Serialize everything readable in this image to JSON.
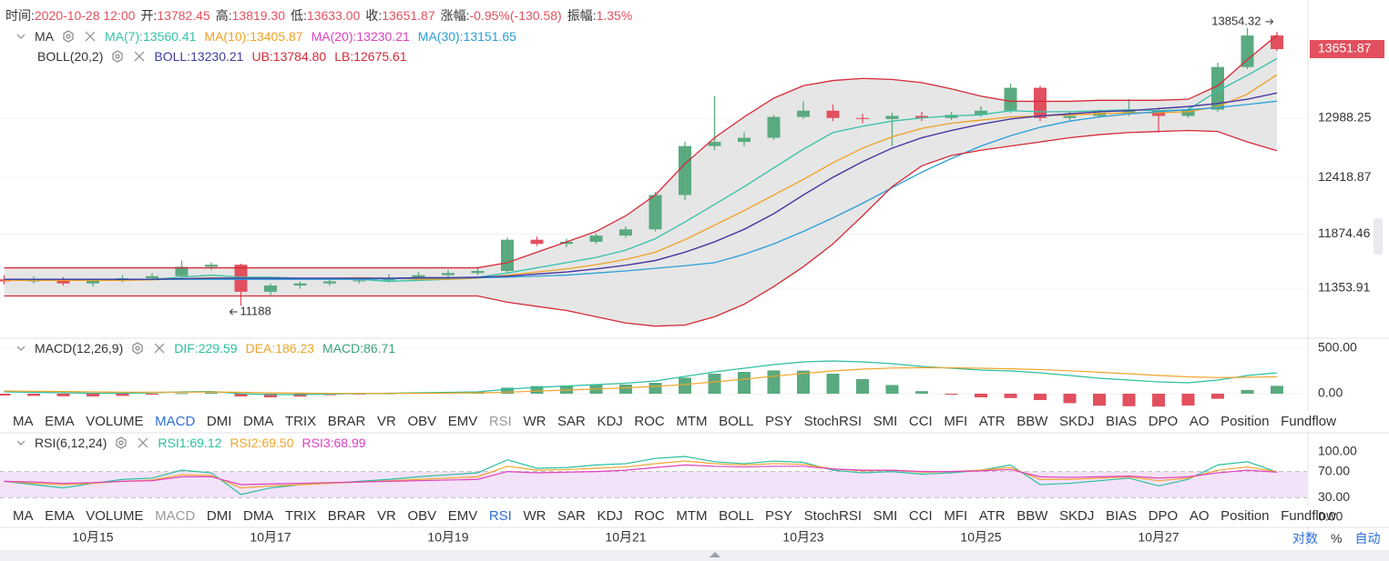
{
  "header": [
    {
      "label": "时间:",
      "value": "2020-10-28 12:00"
    },
    {
      "label": "开:",
      "value": "13782.45"
    },
    {
      "label": "高:",
      "value": "13819.30"
    },
    {
      "label": "低:",
      "value": "13633.00"
    },
    {
      "label": "收:",
      "value": "13651.87"
    },
    {
      "label": "涨幅:",
      "value": "-0.95%(-130.58)"
    },
    {
      "label": "振幅:",
      "value": "1.35%"
    }
  ],
  "chart_data": [
    {
      "type": "candlestick",
      "categories": [
        null,
        null,
        null,
        "10月15",
        null,
        null,
        null,
        null,
        null,
        "10月17",
        null,
        null,
        null,
        null,
        null,
        "10月19",
        null,
        null,
        null,
        null,
        null,
        "10月21",
        null,
        null,
        null,
        null,
        null,
        "10月23",
        null,
        null,
        null,
        null,
        null,
        "10月25",
        null,
        null,
        null,
        null,
        null,
        "10月27",
        null,
        null,
        null,
        null
      ],
      "candles": [
        [
          11440,
          11480,
          11390,
          11420
        ],
        [
          11420,
          11470,
          11400,
          11440
        ],
        [
          11440,
          11460,
          11380,
          11400
        ],
        [
          11400,
          11450,
          11370,
          11430
        ],
        [
          11430,
          11480,
          11410,
          11450
        ],
        [
          11450,
          11500,
          11430,
          11470
        ],
        [
          11470,
          11620,
          11450,
          11560
        ],
        [
          11560,
          11600,
          11530,
          11580
        ],
        [
          11580,
          11590,
          11188,
          11320
        ],
        [
          11320,
          11400,
          11290,
          11380
        ],
        [
          11380,
          11420,
          11350,
          11400
        ],
        [
          11400,
          11440,
          11380,
          11420
        ],
        [
          11420,
          11460,
          11400,
          11430
        ],
        [
          11430,
          11490,
          11410,
          11450
        ],
        [
          11450,
          11510,
          11430,
          11480
        ],
        [
          11480,
          11530,
          11460,
          11500
        ],
        [
          11500,
          11560,
          11480,
          11520
        ],
        [
          11520,
          11840,
          11500,
          11820
        ],
        [
          11820,
          11850,
          11760,
          11780
        ],
        [
          11780,
          11830,
          11750,
          11800
        ],
        [
          11800,
          11880,
          11780,
          11860
        ],
        [
          11860,
          11950,
          11840,
          11920
        ],
        [
          11920,
          12280,
          11900,
          12250
        ],
        [
          12250,
          12760,
          12200,
          12720
        ],
        [
          12720,
          13200,
          12680,
          12760
        ],
        [
          12760,
          12850,
          12720,
          12800
        ],
        [
          12800,
          13020,
          12780,
          13000
        ],
        [
          13000,
          13150,
          12980,
          13060
        ],
        [
          13060,
          13120,
          12960,
          12990
        ],
        [
          12990,
          13030,
          12940,
          12980
        ],
        [
          12980,
          13040,
          12720,
          13010
        ],
        [
          13010,
          13050,
          12960,
          12990
        ],
        [
          12990,
          13050,
          12970,
          13020
        ],
        [
          13020,
          13100,
          13000,
          13060
        ],
        [
          13060,
          13320,
          13040,
          13280
        ],
        [
          13280,
          13300,
          12960,
          12990
        ],
        [
          12990,
          13050,
          12960,
          13010
        ],
        [
          13010,
          13070,
          12990,
          13040
        ],
        [
          13040,
          13170,
          13010,
          13060
        ],
        [
          13060,
          13090,
          12850,
          13010
        ],
        [
          13010,
          13090,
          12990,
          13070
        ],
        [
          13070,
          13520,
          13050,
          13480
        ],
        [
          13480,
          13854.32,
          13460,
          13782.45
        ],
        [
          13782.45,
          13819.3,
          13633.0,
          13651.87
        ]
      ],
      "up_color": "#5aaa80",
      "down_color": "#e2505f",
      "band_color": "#e6e6e6",
      "ylim": [
        10891,
        14080
      ],
      "yticks": [
        11353.91,
        11874.46,
        12418.87,
        12988.25
      ],
      "indicators": [
        {
          "label": "MA",
          "series": [
            {
              "name": "MA(7):13560.41",
              "color": "#35c2a8",
              "values": [
                11430,
                11430,
                11430,
                11430,
                11435,
                11440,
                11460,
                11480,
                11460,
                11460,
                11450,
                11450,
                11440,
                11420,
                11430,
                11440,
                11460,
                11500,
                11550,
                11600,
                11650,
                11720,
                11830,
                11990,
                12160,
                12330,
                12510,
                12690,
                12850,
                12910,
                12960,
                12990,
                13010,
                13020,
                13060,
                13050,
                13050,
                13060,
                13070,
                13060,
                13070,
                13250,
                13400,
                13560.41
              ]
            },
            {
              "name": "MA(10):13405.87",
              "color": "#f0a020",
              "values": [
                11430,
                11430,
                11430,
                11430,
                11430,
                11435,
                11445,
                11455,
                11450,
                11450,
                11450,
                11450,
                11455,
                11450,
                11440,
                11440,
                11450,
                11480,
                11510,
                11540,
                11580,
                11630,
                11700,
                11820,
                11960,
                12100,
                12250,
                12400,
                12560,
                12700,
                12810,
                12890,
                12940,
                12970,
                13000,
                13010,
                13020,
                13030,
                13040,
                13040,
                13050,
                13100,
                13220,
                13405.87
              ]
            },
            {
              "name": "MA(20):13230.21",
              "color": "#e040c0",
              "values": [
                11440,
                11440,
                11440,
                11440,
                11440,
                11440,
                11445,
                11450,
                11450,
                11450,
                11450,
                11450,
                11450,
                11450,
                11455,
                11455,
                11460,
                11470,
                11490,
                11510,
                11540,
                11575,
                11620,
                11700,
                11800,
                11920,
                12070,
                12250,
                12420,
                12570,
                12700,
                12800,
                12870,
                12930,
                12980,
                13010,
                13030,
                13050,
                13060,
                13080,
                13100,
                13130,
                13170,
                13230.21
              ]
            },
            {
              "name": "MA(30):13151.65",
              "color": "#2a9fd8",
              "values": [
                11440,
                11440,
                11440,
                11440,
                11440,
                11440,
                11440,
                11440,
                11440,
                11440,
                11440,
                11440,
                11440,
                11445,
                11450,
                11450,
                11455,
                11460,
                11470,
                11480,
                11500,
                11520,
                11545,
                11570,
                11600,
                11680,
                11780,
                11900,
                12030,
                12170,
                12320,
                12470,
                12600,
                12720,
                12820,
                12900,
                12960,
                13000,
                13030,
                13050,
                13070,
                13090,
                13120,
                13151.65
              ]
            }
          ]
        },
        {
          "label": "BOLL(20,2)",
          "series": [
            {
              "name": "BOLL:13230.21",
              "color": "#3c3ca0",
              "values": [
                11440,
                11440,
                11440,
                11440,
                11440,
                11440,
                11445,
                11450,
                11450,
                11450,
                11450,
                11450,
                11450,
                11450,
                11455,
                11455,
                11460,
                11470,
                11490,
                11510,
                11540,
                11575,
                11620,
                11700,
                11800,
                11920,
                12070,
                12250,
                12420,
                12570,
                12700,
                12800,
                12870,
                12930,
                12980,
                13010,
                13030,
                13050,
                13060,
                13080,
                13100,
                13130,
                13170,
                13230.21
              ]
            },
            {
              "name": "UB:13784.80",
              "color": "#d62a38",
              "values": [
                11550,
                11550,
                11550,
                11550,
                11550,
                11550,
                11550,
                11550,
                11550,
                11550,
                11550,
                11550,
                11550,
                11550,
                11550,
                11550,
                11550,
                11600,
                11700,
                11800,
                11900,
                12050,
                12250,
                12550,
                12800,
                13000,
                13180,
                13300,
                13350,
                13370,
                13360,
                13330,
                13270,
                13200,
                13150,
                13150,
                13150,
                13160,
                13160,
                13160,
                13170,
                13300,
                13550,
                13784.8
              ]
            },
            {
              "name": "LB:12675.61",
              "color": "#d62a38",
              "values": [
                11280,
                11280,
                11280,
                11280,
                11280,
                11280,
                11280,
                11280,
                11280,
                11280,
                11280,
                11280,
                11280,
                11280,
                11280,
                11280,
                11280,
                11220,
                11180,
                11140,
                11080,
                11020,
                10990,
                11000,
                11080,
                11200,
                11370,
                11560,
                11780,
                12050,
                12330,
                12530,
                12630,
                12680,
                12720,
                12760,
                12800,
                12830,
                12850,
                12860,
                12870,
                12860,
                12760,
                12675.61
              ]
            }
          ]
        }
      ]
    },
    {
      "type": "macd",
      "label": "MACD(12,26,9)",
      "ylim": [
        -150,
        580
      ],
      "yticks": [
        {
          "value": 500,
          "label": "500.00"
        },
        {
          "value": 0,
          "label": "0.00"
        }
      ],
      "up_color": "#5aaa80",
      "down_color": "#e2505f",
      "series": [
        {
          "name": "DIF:229.59",
          "color": "#2bbf9f",
          "values": [
            20,
            15,
            10,
            5,
            5,
            10,
            20,
            25,
            0,
            -10,
            -10,
            -5,
            0,
            5,
            10,
            15,
            20,
            50,
            70,
            85,
            100,
            115,
            140,
            190,
            240,
            280,
            320,
            350,
            360,
            350,
            330,
            300,
            280,
            260,
            250,
            230,
            200,
            170,
            150,
            130,
            120,
            150,
            200,
            229.59
          ]
        },
        {
          "name": "DEA:186.23",
          "color": "#f0a52a",
          "values": [
            30,
            27,
            24,
            20,
            17,
            16,
            17,
            19,
            15,
            10,
            6,
            3,
            2,
            3,
            4,
            6,
            9,
            17,
            28,
            40,
            52,
            65,
            80,
            102,
            130,
            160,
            192,
            223,
            250,
            270,
            282,
            286,
            285,
            280,
            274,
            265,
            252,
            236,
            219,
            201,
            185,
            178,
            180,
            186.23
          ]
        },
        {
          "name": "MACD:86.71",
          "color": "#3aa57a",
          "histogram": true,
          "values": [
            -20,
            -24,
            -28,
            -30,
            -24,
            -12,
            6,
            12,
            -30,
            -40,
            -32,
            -16,
            -4,
            4,
            12,
            18,
            22,
            66,
            84,
            90,
            96,
            100,
            120,
            176,
            220,
            240,
            256,
            254,
            220,
            160,
            96,
            28,
            -10,
            -40,
            -48,
            -70,
            -104,
            -132,
            -138,
            -142,
            -130,
            -56,
            40,
            86.71
          ]
        }
      ]
    },
    {
      "type": "rsi",
      "label": "RSI(6,12,24)",
      "ylim": [
        -12.5,
        123.6
      ],
      "yticks": [
        {
          "value": 100,
          "label": "100.00"
        },
        {
          "value": 70,
          "label": "70.00"
        },
        {
          "value": 30,
          "label": "30.00"
        },
        {
          "value": 0,
          "label": "0.00"
        }
      ],
      "band_color": "#f3e3f8",
      "series": [
        {
          "name": "RSI1:69.12",
          "color": "#2bbf9f",
          "values": [
            55,
            50,
            45,
            52,
            58,
            60,
            72,
            68,
            35,
            45,
            50,
            52,
            55,
            58,
            62,
            65,
            68,
            88,
            75,
            76,
            80,
            82,
            90,
            93,
            85,
            82,
            86,
            84,
            72,
            68,
            70,
            66,
            68,
            72,
            80,
            50,
            52,
            56,
            60,
            48,
            58,
            80,
            85,
            69.12
          ]
        },
        {
          "name": "RSI2:69.50",
          "color": "#f0a52a",
          "values": [
            55,
            52,
            50,
            52,
            55,
            57,
            65,
            64,
            45,
            48,
            50,
            52,
            54,
            56,
            58,
            60,
            62,
            78,
            72,
            73,
            75,
            77,
            82,
            86,
            82,
            80,
            82,
            81,
            74,
            71,
            72,
            69,
            70,
            72,
            76,
            58,
            58,
            60,
            62,
            56,
            60,
            72,
            77,
            69.5
          ]
        },
        {
          "name": "RSI3:68.99",
          "color": "#e040c0",
          "values": [
            55,
            54,
            52,
            53,
            55,
            56,
            62,
            62,
            50,
            51,
            52,
            53,
            54,
            55,
            56,
            57,
            58,
            70,
            68,
            69,
            70,
            72,
            76,
            80,
            78,
            77,
            78,
            78,
            74,
            72,
            72,
            70,
            70,
            71,
            73,
            62,
            61,
            62,
            63,
            60,
            62,
            68,
            72,
            68.99
          ]
        }
      ]
    }
  ],
  "tabs": [
    "MA",
    "EMA",
    "VOLUME",
    "MACD",
    "DMI",
    "DMA",
    "TRIX",
    "BRAR",
    "VR",
    "OBV",
    "EMV",
    "RSI",
    "WR",
    "SAR",
    "KDJ",
    "ROC",
    "MTM",
    "BOLL",
    "PSY",
    "StochRSI",
    "SMI",
    "CCI",
    "MFI",
    "ATR",
    "BBW",
    "SKDJ",
    "BIAS",
    "DPO",
    "AO",
    "Position",
    "Fundflow"
  ],
  "axis_buttons": [
    "对数",
    "%",
    "自动"
  ]
}
